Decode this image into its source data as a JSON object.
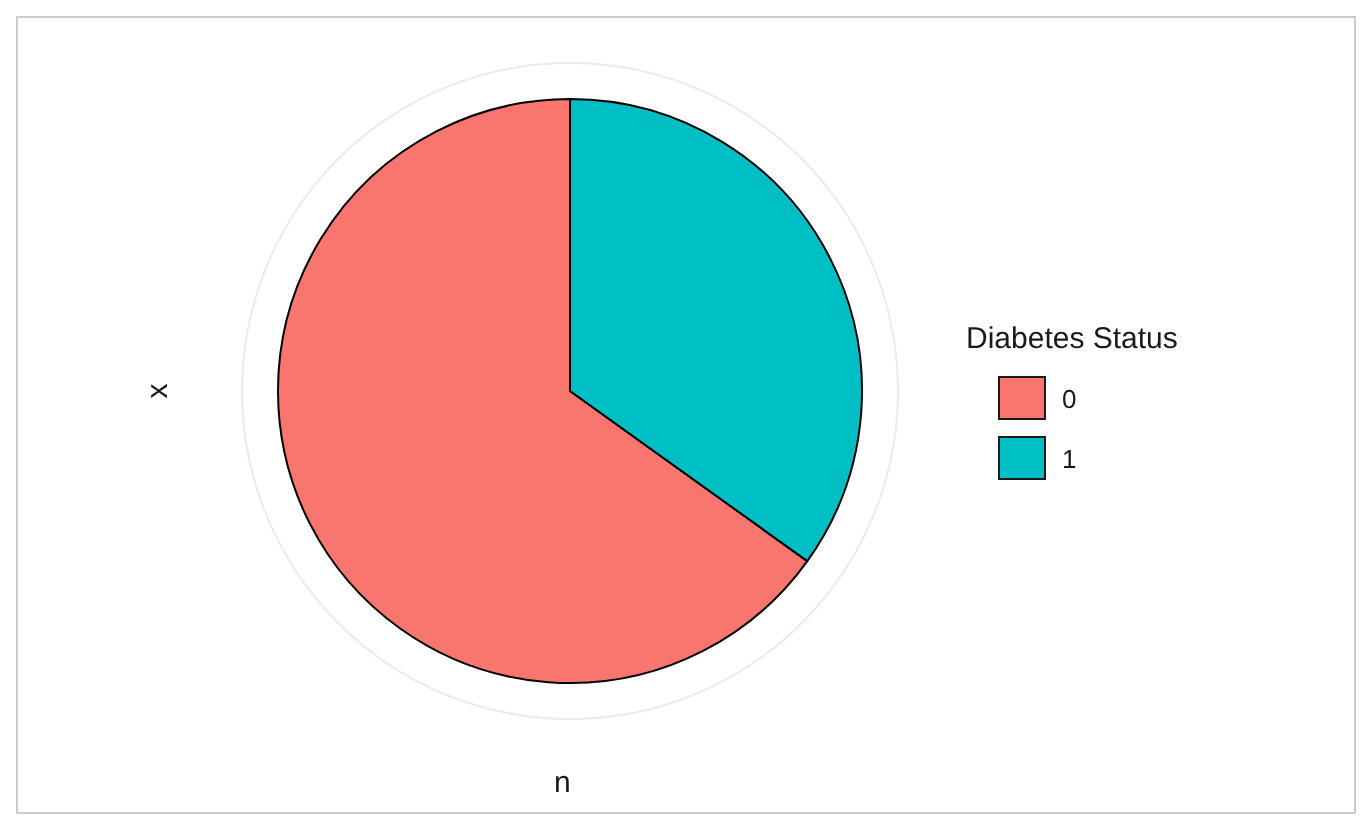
{
  "chart_data": {
    "type": "pie",
    "xlabel": "n",
    "ylabel": "x",
    "legend_title": "Diabetes Status",
    "legend": "right",
    "grid": true,
    "categories": [
      "0",
      "1"
    ],
    "values": [
      65.1,
      34.9
    ],
    "colors": [
      "#f8766d",
      "#00bfc4"
    ]
  }
}
